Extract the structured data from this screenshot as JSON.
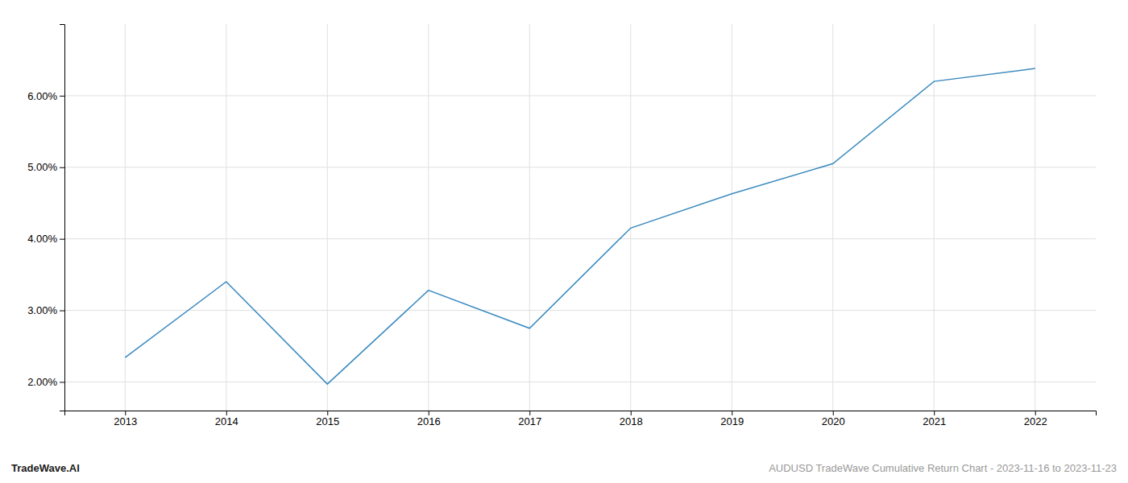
{
  "chart_data": {
    "type": "line",
    "x": [
      2013,
      2014,
      2015,
      2016,
      2017,
      2018,
      2019,
      2020,
      2021,
      2022
    ],
    "values": [
      0.0234,
      0.034,
      0.0197,
      0.0328,
      0.0275,
      0.0415,
      0.0463,
      0.0505,
      0.062,
      0.0638
    ],
    "color": "#3a8abf",
    "xlim": [
      2012.4,
      2022.6
    ],
    "xticks": [
      2013,
      2014,
      2015,
      2016,
      2017,
      2018,
      2019,
      2020,
      2021,
      2022
    ],
    "ylim": [
      0.016,
      0.07
    ],
    "yticks": [
      {
        "value": 0.02,
        "label": "2.00%"
      },
      {
        "value": 0.03,
        "label": "3.00%"
      },
      {
        "value": 0.04,
        "label": "4.00%"
      },
      {
        "value": 0.05,
        "label": "5.00%"
      },
      {
        "value": 0.06,
        "label": "6.00%"
      }
    ],
    "grid": true,
    "annotations": [
      "TradeWave.AI",
      "AUDUSD TradeWave Cumulative Return Chart - 2023-11-16 to 2023-11-23"
    ]
  }
}
